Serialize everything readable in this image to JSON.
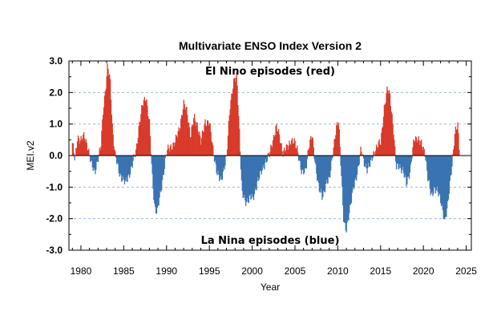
{
  "chart_data": {
    "type": "bar",
    "title": "Multivariate ENSO Index Version 2",
    "xlabel": "Year",
    "ylabel": "MEI.v2",
    "xlim": [
      1978.6,
      2025.6
    ],
    "ylim": [
      -3.0,
      3.0
    ],
    "x_ticks": [
      "1980",
      "1985",
      "1990",
      "1995",
      "2000",
      "2005",
      "2010",
      "2015",
      "2020",
      "2025"
    ],
    "y_ticks": [
      "3.0",
      "2.0",
      "1.0",
      "0.0",
      "-1.0",
      "-2.0",
      "-3.0"
    ],
    "grid": "dashed horizontal lines at y = ±1 and ±2",
    "annotations": [
      "El Nino episodes (red)",
      "La Nina episodes (blue)"
    ],
    "colors": {
      "positive": "#d93b2b",
      "negative": "#3a73b2",
      "grid": "#9bb8d9",
      "axis": "#000000"
    },
    "anchors": [
      [
        1979.0,
        0.4
      ],
      [
        1979.3,
        -0.2
      ],
      [
        1979.6,
        0.6
      ],
      [
        1980.0,
        0.5
      ],
      [
        1980.4,
        0.6
      ],
      [
        1980.8,
        0.3
      ],
      [
        1981.2,
        -0.3
      ],
      [
        1981.6,
        -0.5
      ],
      [
        1982.0,
        -0.1
      ],
      [
        1982.3,
        0.2
      ],
      [
        1982.6,
        1.5
      ],
      [
        1982.9,
        2.2
      ],
      [
        1983.1,
        2.8
      ],
      [
        1983.4,
        2.4
      ],
      [
        1983.7,
        0.8
      ],
      [
        1984.0,
        0.0
      ],
      [
        1984.4,
        -0.5
      ],
      [
        1984.8,
        -0.7
      ],
      [
        1985.2,
        -0.9
      ],
      [
        1985.6,
        -0.6
      ],
      [
        1986.0,
        -0.3
      ],
      [
        1986.4,
        0.1
      ],
      [
        1986.8,
        1.0
      ],
      [
        1987.2,
        1.6
      ],
      [
        1987.6,
        1.9
      ],
      [
        1988.0,
        1.0
      ],
      [
        1988.3,
        -0.6
      ],
      [
        1988.6,
        -1.6
      ],
      [
        1988.9,
        -1.8
      ],
      [
        1989.3,
        -1.2
      ],
      [
        1989.7,
        -0.4
      ],
      [
        1990.0,
        0.1
      ],
      [
        1990.5,
        0.3
      ],
      [
        1991.0,
        0.4
      ],
      [
        1991.5,
        0.9
      ],
      [
        1992.0,
        1.6
      ],
      [
        1992.4,
        1.4
      ],
      [
        1992.8,
        0.6
      ],
      [
        1993.2,
        1.2
      ],
      [
        1993.6,
        1.0
      ],
      [
        1994.0,
        0.4
      ],
      [
        1994.5,
        1.1
      ],
      [
        1995.0,
        1.0
      ],
      [
        1995.5,
        0.1
      ],
      [
        1995.9,
        -0.6
      ],
      [
        1996.3,
        -0.8
      ],
      [
        1996.7,
        -0.4
      ],
      [
        1997.0,
        -0.1
      ],
      [
        1997.4,
        1.6
      ],
      [
        1997.8,
        2.3
      ],
      [
        1998.2,
        2.5
      ],
      [
        1998.5,
        0.8
      ],
      [
        1998.8,
        -1.2
      ],
      [
        1999.2,
        -1.5
      ],
      [
        1999.7,
        -1.3
      ],
      [
        2000.1,
        -1.4
      ],
      [
        2000.6,
        -0.8
      ],
      [
        2001.0,
        -0.6
      ],
      [
        2001.5,
        -0.2
      ],
      [
        2002.0,
        0.0
      ],
      [
        2002.4,
        0.5
      ],
      [
        2002.8,
        0.9
      ],
      [
        2003.2,
        0.6
      ],
      [
        2003.6,
        0.1
      ],
      [
        2004.0,
        0.2
      ],
      [
        2004.5,
        0.5
      ],
      [
        2004.9,
        0.4
      ],
      [
        2005.3,
        0.2
      ],
      [
        2005.8,
        -0.6
      ],
      [
        2006.2,
        -0.5
      ],
      [
        2006.6,
        0.3
      ],
      [
        2007.0,
        0.6
      ],
      [
        2007.4,
        -0.3
      ],
      [
        2007.8,
        -1.1
      ],
      [
        2008.2,
        -1.3
      ],
      [
        2008.6,
        -0.9
      ],
      [
        2009.0,
        -0.8
      ],
      [
        2009.4,
        0.1
      ],
      [
        2009.8,
        0.8
      ],
      [
        2010.1,
        1.1
      ],
      [
        2010.4,
        -0.5
      ],
      [
        2010.7,
        -2.2
      ],
      [
        2011.0,
        -2.4
      ],
      [
        2011.3,
        -1.8
      ],
      [
        2011.7,
        -1.2
      ],
      [
        2012.0,
        -0.9
      ],
      [
        2012.4,
        -0.3
      ],
      [
        2012.7,
        0.2
      ],
      [
        2013.0,
        -0.2
      ],
      [
        2013.4,
        -0.4
      ],
      [
        2013.8,
        -0.3
      ],
      [
        2014.2,
        0.1
      ],
      [
        2014.6,
        0.3
      ],
      [
        2015.0,
        0.4
      ],
      [
        2015.4,
        1.5
      ],
      [
        2015.8,
        2.1
      ],
      [
        2016.1,
        1.9
      ],
      [
        2016.5,
        0.8
      ],
      [
        2016.8,
        -0.4
      ],
      [
        2017.2,
        -0.3
      ],
      [
        2017.6,
        -0.5
      ],
      [
        2018.0,
        -0.9
      ],
      [
        2018.5,
        -0.4
      ],
      [
        2018.9,
        0.5
      ],
      [
        2019.3,
        0.6
      ],
      [
        2019.8,
        0.3
      ],
      [
        2020.2,
        0.1
      ],
      [
        2020.5,
        -0.7
      ],
      [
        2020.9,
        -1.3
      ],
      [
        2021.3,
        -1.0
      ],
      [
        2021.7,
        -1.2
      ],
      [
        2022.1,
        -1.5
      ],
      [
        2022.5,
        -2.1
      ],
      [
        2022.8,
        -1.7
      ],
      [
        2023.1,
        -0.8
      ],
      [
        2023.4,
        -0.1
      ],
      [
        2023.7,
        0.7
      ],
      [
        2024.0,
        1.0
      ],
      [
        2024.2,
        0.2
      ]
    ]
  }
}
